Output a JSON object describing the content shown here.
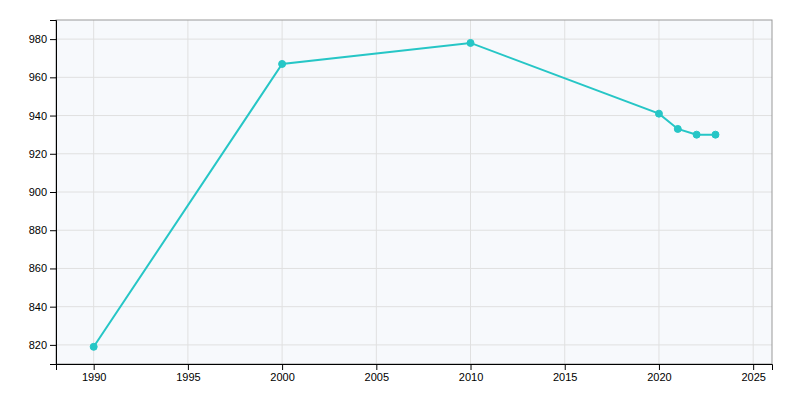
{
  "chart_data": {
    "type": "line",
    "x": [
      1990,
      2000,
      2010,
      2020,
      2021,
      2022,
      2023
    ],
    "values": [
      819,
      967,
      978,
      941,
      933,
      930,
      930
    ],
    "color": "#26C6C6",
    "marker": "circle",
    "xlim": [
      1988,
      2026
    ],
    "ylim": [
      810,
      990
    ],
    "xticks": [
      1990,
      1995,
      2000,
      2005,
      2010,
      2015,
      2020,
      2025
    ],
    "yticks": [
      820,
      840,
      860,
      880,
      900,
      920,
      940,
      960,
      980
    ],
    "grid": true
  }
}
